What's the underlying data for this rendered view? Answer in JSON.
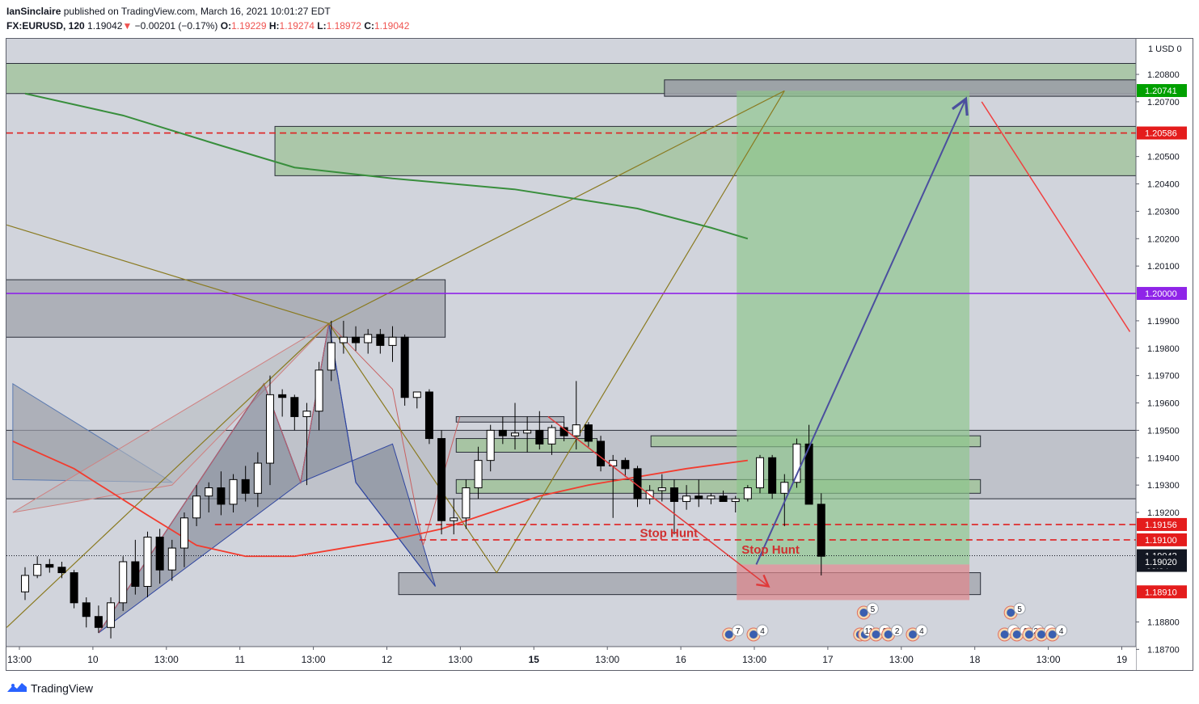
{
  "header": {
    "publisher": "IanSinclaire",
    "published_text": "published on TradingView.com, March 16, 2021 10:01:27 EDT",
    "symbol": "FX:EURUSD, 120",
    "last": "1.19042",
    "down_arrow": "▼",
    "change": "−0.00201 (−0.17%)",
    "open_label": "O:",
    "open": "1.19229",
    "high_label": "H:",
    "high": "1.19274",
    "low_label": "L:",
    "low": "1.18972",
    "close_label": "C:",
    "close": "1.19042"
  },
  "footer": {
    "brand": "TradingView",
    "brand_icon": "tradingview-logo-icon"
  },
  "colors": {
    "background": "#d1d4dc",
    "candle_up": "#ffffff",
    "candle_down": "#000000",
    "ma_green": "#388e3c",
    "ma_red": "#f23c2f",
    "level_purple": "#8f24e8",
    "level_red": "#e02020",
    "label_green": "#00a000",
    "label_red": "#e41c1c",
    "label_purple": "#8f24e8",
    "label_black": "#131722",
    "text_red": "#d03030"
  },
  "chart_data": {
    "type": "candlestick",
    "symbol": "FX:EURUSD",
    "interval": "120",
    "currency": "USD",
    "ylim": [
      1.1871,
      1.2093
    ],
    "price_ticks": [
      "1.20800",
      "1.20700",
      "1.20500",
      "1.20400",
      "1.20300",
      "1.20200",
      "1.20100",
      "1.19900",
      "1.19800",
      "1.19700",
      "1.19600",
      "1.19500",
      "1.19400",
      "1.19300",
      "1.19200",
      "1.18800",
      "1.18700"
    ],
    "price_axis_top": [
      "1",
      "USD",
      "0"
    ],
    "time_ticks": [
      {
        "i": 0,
        "label": "13:00"
      },
      {
        "i": 6,
        "label": "10"
      },
      {
        "i": 12,
        "label": "13:00"
      },
      {
        "i": 18,
        "label": "11"
      },
      {
        "i": 24,
        "label": "13:00"
      },
      {
        "i": 30,
        "label": "12"
      },
      {
        "i": 36,
        "label": "13:00"
      },
      {
        "i": 42,
        "label": "15",
        "bold": true
      },
      {
        "i": 48,
        "label": "13:00"
      },
      {
        "i": 54,
        "label": "16"
      },
      {
        "i": 60,
        "label": "13:00"
      },
      {
        "i": 66,
        "label": "17"
      },
      {
        "i": 72,
        "label": "13:00"
      },
      {
        "i": 78,
        "label": "18"
      },
      {
        "i": 84,
        "label": "13:00"
      },
      {
        "i": 90,
        "label": "19"
      }
    ],
    "price_labels": [
      {
        "value": 1.20741,
        "text": "1.20741",
        "color_key": "label_green"
      },
      {
        "value": 1.20586,
        "text": "1.20586",
        "color_key": "label_red"
      },
      {
        "value": 1.2,
        "text": "1.20000",
        "color_key": "label_purple"
      },
      {
        "value": 1.19156,
        "text": "1.19156",
        "color_key": "label_red"
      },
      {
        "value": 1.191,
        "text": "1.19100",
        "color_key": "label_red"
      },
      {
        "value": 1.19042,
        "text": "1.19042",
        "sub": "58:34",
        "color_key": "label_black"
      },
      {
        "value": 1.1902,
        "text": "1.19020",
        "color_key": "label_black"
      },
      {
        "value": 1.1891,
        "text": "1.18910",
        "color_key": "label_red"
      }
    ],
    "candles": [
      [
        1.1891,
        1.19,
        1.1888,
        1.1897
      ],
      [
        1.1897,
        1.1904,
        1.1896,
        1.1901
      ],
      [
        1.1901,
        1.1903,
        1.1898,
        1.19
      ],
      [
        1.19,
        1.1902,
        1.1896,
        1.1898
      ],
      [
        1.1898,
        1.1899,
        1.1885,
        1.1887
      ],
      [
        1.1887,
        1.1889,
        1.1878,
        1.1882
      ],
      [
        1.1882,
        1.1886,
        1.1876,
        1.1878
      ],
      [
        1.1878,
        1.1889,
        1.1874,
        1.1887
      ],
      [
        1.1887,
        1.1904,
        1.1884,
        1.1902
      ],
      [
        1.1902,
        1.191,
        1.189,
        1.1893
      ],
      [
        1.1893,
        1.1913,
        1.1889,
        1.1911
      ],
      [
        1.1911,
        1.1914,
        1.1894,
        1.1899
      ],
      [
        1.1899,
        1.191,
        1.1895,
        1.1907
      ],
      [
        1.1907,
        1.192,
        1.19,
        1.1918
      ],
      [
        1.1918,
        1.193,
        1.1915,
        1.1926
      ],
      [
        1.1926,
        1.1931,
        1.192,
        1.1929
      ],
      [
        1.1929,
        1.1935,
        1.1919,
        1.1923
      ],
      [
        1.1923,
        1.1934,
        1.192,
        1.1932
      ],
      [
        1.1932,
        1.1937,
        1.1924,
        1.1927
      ],
      [
        1.1927,
        1.1942,
        1.1922,
        1.1938
      ],
      [
        1.1938,
        1.197,
        1.193,
        1.1963
      ],
      [
        1.1963,
        1.1965,
        1.1955,
        1.1962
      ],
      [
        1.1962,
        1.1963,
        1.195,
        1.1955
      ],
      [
        1.1955,
        1.196,
        1.193,
        1.1957
      ],
      [
        1.1957,
        1.1975,
        1.195,
        1.1972
      ],
      [
        1.1972,
        1.199,
        1.1968,
        1.1982
      ],
      [
        1.1982,
        1.199,
        1.1978,
        1.1984
      ],
      [
        1.1984,
        1.1988,
        1.1979,
        1.1982
      ],
      [
        1.1982,
        1.1987,
        1.1978,
        1.1985
      ],
      [
        1.1985,
        1.1987,
        1.1978,
        1.1981
      ],
      [
        1.1981,
        1.1988,
        1.1975,
        1.1984
      ],
      [
        1.1984,
        1.1985,
        1.1959,
        1.1962
      ],
      [
        1.1962,
        1.1964,
        1.1958,
        1.1964
      ],
      [
        1.1964,
        1.1965,
        1.1945,
        1.1947
      ],
      [
        1.1947,
        1.195,
        1.1912,
        1.1917
      ],
      [
        1.1917,
        1.1925,
        1.1912,
        1.1918
      ],
      [
        1.1918,
        1.1932,
        1.1914,
        1.1929
      ],
      [
        1.1929,
        1.1944,
        1.1925,
        1.1939
      ],
      [
        1.1939,
        1.1952,
        1.1935,
        1.195
      ],
      [
        1.195,
        1.1955,
        1.1945,
        1.1948
      ],
      [
        1.1948,
        1.196,
        1.1943,
        1.1949
      ],
      [
        1.1949,
        1.1955,
        1.1942,
        1.195
      ],
      [
        1.195,
        1.1957,
        1.1943,
        1.1945
      ],
      [
        1.1945,
        1.1952,
        1.1941,
        1.1951
      ],
      [
        1.1951,
        1.1953,
        1.1946,
        1.1948
      ],
      [
        1.1948,
        1.1968,
        1.1943,
        1.1952
      ],
      [
        1.1952,
        1.1953,
        1.1944,
        1.1946
      ],
      [
        1.1946,
        1.1948,
        1.1935,
        1.1937
      ],
      [
        1.1937,
        1.1941,
        1.1918,
        1.1939
      ],
      [
        1.1939,
        1.194,
        1.1933,
        1.1936
      ],
      [
        1.1936,
        1.1937,
        1.1922,
        1.1925
      ],
      [
        1.1925,
        1.193,
        1.1923,
        1.1928
      ],
      [
        1.1928,
        1.1934,
        1.1924,
        1.1929
      ],
      [
        1.1929,
        1.1932,
        1.1912,
        1.1924
      ],
      [
        1.1924,
        1.193,
        1.1921,
        1.1926
      ],
      [
        1.1926,
        1.1932,
        1.1922,
        1.1925
      ],
      [
        1.1925,
        1.1927,
        1.1923,
        1.1926
      ],
      [
        1.1926,
        1.1928,
        1.1924,
        1.1924
      ],
      [
        1.1924,
        1.1926,
        1.192,
        1.1925
      ],
      [
        1.1925,
        1.193,
        1.1924,
        1.1929
      ],
      [
        1.1929,
        1.1941,
        1.1927,
        1.194
      ],
      [
        1.194,
        1.1941,
        1.1925,
        1.1927
      ],
      [
        1.1927,
        1.1934,
        1.1915,
        1.1931
      ],
      [
        1.1931,
        1.1947,
        1.1929,
        1.1945
      ],
      [
        1.1945,
        1.1952,
        1.1923,
        1.1923
      ],
      [
        1.1923,
        1.1927,
        1.1897,
        1.1904
      ]
    ],
    "bar_x_start": 31,
    "bar_x_step": 15.15,
    "ma_green": [
      [
        0,
        1.2073
      ],
      [
        8,
        1.2065
      ],
      [
        16,
        1.2054
      ],
      [
        22,
        1.2046
      ],
      [
        30,
        1.2042
      ],
      [
        40,
        1.2038
      ],
      [
        50,
        1.2031
      ],
      [
        56,
        1.2024
      ],
      [
        59,
        1.202
      ]
    ],
    "ma_red": [
      [
        -1,
        1.1946
      ],
      [
        4,
        1.1936
      ],
      [
        10,
        1.1919
      ],
      [
        14,
        1.1908
      ],
      [
        18,
        1.1904
      ],
      [
        22,
        1.1904
      ],
      [
        26,
        1.1907
      ],
      [
        30,
        1.191
      ],
      [
        34,
        1.1914
      ],
      [
        38,
        1.192
      ],
      [
        42,
        1.1926
      ],
      [
        46,
        1.193
      ],
      [
        50,
        1.1933
      ],
      [
        54,
        1.1936
      ],
      [
        59,
        1.1939
      ]
    ],
    "zones": [
      {
        "x0": -2,
        "x1": 92,
        "y0": 1.2084,
        "y1": 1.2073,
        "fill": "#a5c4a0",
        "opacity": 0.85
      },
      {
        "x0": 52.2,
        "x1": 92,
        "y0": 1.2078,
        "y1": 1.2072,
        "fill": "#9b9ea6",
        "opacity": 0.9
      },
      {
        "x0": 20.4,
        "x1": 92,
        "y0": 1.2061,
        "y1": 1.2043,
        "fill": "#a5c4a0",
        "opacity": 0.85
      },
      {
        "x0": -2,
        "x1": 34.3,
        "y0": 1.2005,
        "y1": 1.1984,
        "fill": "#a9acb4",
        "opacity": 0.9
      },
      {
        "x0": -2,
        "x1": 92,
        "y0": 1.195,
        "y1": 1.1925,
        "fill": "#b8bbc2",
        "opacity": 0.7
      },
      {
        "x0": 35.2,
        "x1": 44,
        "y0": 1.1955,
        "y1": 1.1953,
        "fill": "#b0b3bb",
        "opacity": 0.95
      },
      {
        "x0": 35.2,
        "x1": 46.7,
        "y0": 1.1947,
        "y1": 1.1942,
        "fill": "#a5c4a0",
        "opacity": 0.95
      },
      {
        "x0": 51.1,
        "x1": 78,
        "y0": 1.1948,
        "y1": 1.1944,
        "fill": "#a5c4a0",
        "opacity": 0.95
      },
      {
        "x0": 35.2,
        "x1": 78,
        "y0": 1.1932,
        "y1": 1.1927,
        "fill": "#a5c4a0",
        "opacity": 0.95
      },
      {
        "x0": 30.5,
        "x1": 78,
        "y0": 1.1898,
        "y1": 1.189,
        "fill": "#a9acb4",
        "opacity": 0.9
      }
    ],
    "levels": [
      {
        "value": 1.20586,
        "color_key": "level_red",
        "dash": true
      },
      {
        "value": 1.2,
        "color_key": "level_purple",
        "dash": false
      },
      {
        "value": 1.19156,
        "color_key": "level_red",
        "dash": true,
        "x0": 15.5
      },
      {
        "value": 1.191,
        "color_key": "level_red",
        "dash": true,
        "x0": 32.2
      },
      {
        "value": 1.19042,
        "color_key": "label_black",
        "dotted": true
      }
    ],
    "position": {
      "x0": 58.1,
      "x1": 77.1,
      "profit": [
        1.2074,
        1.1901
      ],
      "loss": [
        1.1901,
        1.1888
      ]
    },
    "annotations": [
      {
        "text": "Stop Hunt",
        "i": 50.2,
        "y": 1.1911
      },
      {
        "text": "Stop Hunt",
        "i": 58.5,
        "y": 1.1905
      }
    ],
    "events": [
      {
        "i": 58,
        "count": "7",
        "flags": 1
      },
      {
        "i": 60,
        "count": "4",
        "flags": 1
      },
      {
        "i": 69,
        "count": "5",
        "flags": 1,
        "row": 2
      },
      {
        "i": 68.7,
        "count": "11",
        "flags": 2
      },
      {
        "i": 70,
        "count": "8",
        "flags": 1
      },
      {
        "i": 71,
        "count": "2",
        "flags": 1
      },
      {
        "i": 73,
        "count": "4",
        "flags": 1
      },
      {
        "i": 81,
        "count": "5",
        "flags": 1,
        "row": 2
      },
      {
        "i": 80.5,
        "count": "4",
        "flags": 1
      },
      {
        "i": 81.5,
        "count": "9",
        "flags": 1
      },
      {
        "i": 82.5,
        "count": "25",
        "flags": 1
      },
      {
        "i": 83.5,
        "count": "4",
        "flags": 1
      },
      {
        "i": 84.4,
        "count": "4",
        "flags": 1
      }
    ]
  }
}
